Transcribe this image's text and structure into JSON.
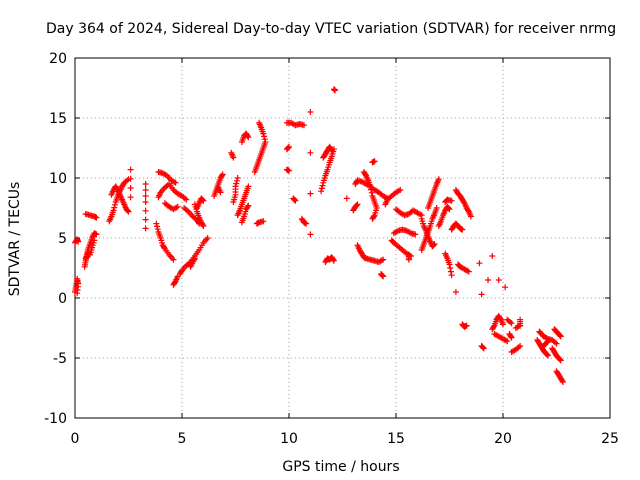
{
  "chart_data": {
    "type": "scatter",
    "title": "Day 364 of 2024, Sidereal Day-to-day VTEC variation (SDTVAR) for receiver nrmg",
    "xlabel": "GPS time / hours",
    "ylabel": "SDTVAR / TECUs",
    "xlim": [
      0,
      25
    ],
    "ylim": [
      -10,
      20
    ],
    "xticks": [
      0,
      5,
      10,
      15,
      20,
      25
    ],
    "yticks": [
      -10,
      -5,
      0,
      5,
      10,
      15,
      20
    ],
    "grid": true,
    "marker": "+",
    "color": "#ff0000",
    "segments": [
      [
        [
          0.0,
          0.5
        ],
        [
          0.05,
          1.0
        ],
        [
          0.1,
          1.6
        ],
        [
          0.15,
          1.2
        ],
        [
          0.1,
          0.4
        ]
      ],
      [
        [
          0.0,
          4.6
        ],
        [
          0.1,
          4.9
        ],
        [
          0.15,
          4.7
        ]
      ],
      [
        [
          0.45,
          2.6
        ],
        [
          0.5,
          3.1
        ],
        [
          0.55,
          3.5
        ],
        [
          0.6,
          4.0
        ],
        [
          0.7,
          4.5
        ],
        [
          0.8,
          5.0
        ],
        [
          0.9,
          5.4
        ],
        [
          1.0,
          5.3
        ]
      ],
      [
        [
          0.5,
          3.3
        ],
        [
          0.6,
          3.8
        ],
        [
          0.7,
          3.6
        ],
        [
          0.8,
          4.2
        ],
        [
          0.9,
          4.8
        ]
      ],
      [
        [
          0.5,
          7.0
        ],
        [
          0.7,
          6.9
        ],
        [
          0.9,
          6.8
        ],
        [
          1.0,
          6.7
        ]
      ],
      [
        [
          1.6,
          6.4
        ],
        [
          1.7,
          6.8
        ],
        [
          1.8,
          7.3
        ],
        [
          1.9,
          8.0
        ],
        [
          2.0,
          8.5
        ],
        [
          2.1,
          8.9
        ],
        [
          2.2,
          9.3
        ],
        [
          2.3,
          9.6
        ],
        [
          2.5,
          9.9
        ]
      ],
      [
        [
          1.7,
          8.6
        ],
        [
          1.8,
          9.0
        ],
        [
          1.9,
          9.3
        ],
        [
          2.0,
          9.0
        ],
        [
          2.1,
          8.6
        ],
        [
          2.2,
          8.2
        ],
        [
          2.3,
          7.8
        ],
        [
          2.4,
          7.4
        ],
        [
          2.5,
          7.2
        ]
      ],
      [
        [
          2.6,
          10.7
        ],
        [
          2.6,
          8.4
        ]
      ],
      [
        [
          3.3,
          9.5
        ],
        [
          3.3,
          8.0
        ],
        [
          3.3,
          5.8
        ]
      ],
      [
        [
          3.8,
          6.2
        ],
        [
          3.9,
          5.5
        ],
        [
          4.0,
          5.0
        ],
        [
          4.1,
          4.4
        ],
        [
          4.2,
          4.1
        ],
        [
          4.4,
          3.6
        ],
        [
          4.6,
          3.2
        ]
      ],
      [
        [
          3.9,
          8.4
        ],
        [
          4.0,
          8.8
        ],
        [
          4.2,
          9.2
        ],
        [
          4.4,
          9.5
        ],
        [
          4.6,
          9.0
        ],
        [
          4.8,
          8.7
        ],
        [
          5.0,
          8.5
        ],
        [
          5.2,
          8.2
        ]
      ],
      [
        [
          3.9,
          10.5
        ],
        [
          4.1,
          10.4
        ],
        [
          4.3,
          10.2
        ],
        [
          4.5,
          9.8
        ],
        [
          4.7,
          9.6
        ]
      ],
      [
        [
          4.2,
          7.9
        ],
        [
          4.4,
          7.6
        ],
        [
          4.6,
          7.4
        ],
        [
          4.8,
          7.6
        ]
      ],
      [
        [
          4.6,
          1.1
        ],
        [
          4.7,
          1.4
        ],
        [
          4.8,
          1.8
        ]
      ],
      [
        [
          4.9,
          2.0
        ],
        [
          5.0,
          2.3
        ],
        [
          5.2,
          2.7
        ],
        [
          5.4,
          3.0
        ],
        [
          5.6,
          3.5
        ],
        [
          5.8,
          4.0
        ],
        [
          6.0,
          4.6
        ],
        [
          6.2,
          5.0
        ]
      ],
      [
        [
          5.4,
          2.6
        ],
        [
          5.5,
          3.0
        ],
        [
          5.6,
          3.3
        ]
      ],
      [
        [
          5.1,
          7.5
        ],
        [
          5.3,
          7.2
        ],
        [
          5.5,
          6.8
        ],
        [
          5.7,
          6.5
        ],
        [
          5.8,
          6.2
        ]
      ],
      [
        [
          5.6,
          7.8
        ],
        [
          5.7,
          7.2
        ],
        [
          5.8,
          6.7
        ],
        [
          5.9,
          6.3
        ],
        [
          6.0,
          6.0
        ]
      ],
      [
        [
          5.7,
          7.5
        ],
        [
          5.8,
          7.9
        ],
        [
          5.9,
          8.3
        ],
        [
          6.0,
          8.1
        ]
      ],
      [
        [
          6.5,
          8.5
        ],
        [
          6.6,
          9.0
        ],
        [
          6.7,
          9.5
        ],
        [
          6.8,
          10.0
        ],
        [
          6.9,
          10.3
        ]
      ],
      [
        [
          6.7,
          9.2
        ],
        [
          6.8,
          8.8
        ]
      ],
      [
        [
          7.3,
          12.1
        ],
        [
          7.4,
          11.7
        ]
      ],
      [
        [
          7.4,
          8.0
        ],
        [
          7.5,
          8.6
        ],
        [
          7.5,
          9.3
        ],
        [
          7.6,
          10.0
        ]
      ],
      [
        [
          7.6,
          6.9
        ],
        [
          7.7,
          7.3
        ],
        [
          7.8,
          7.8
        ],
        [
          7.9,
          8.3
        ],
        [
          8.0,
          8.8
        ],
        [
          8.1,
          9.3
        ]
      ],
      [
        [
          7.8,
          13.0
        ],
        [
          7.9,
          13.5
        ],
        [
          8.0,
          13.7
        ],
        [
          8.1,
          13.4
        ]
      ],
      [
        [
          7.8,
          6.3
        ],
        [
          7.9,
          6.8
        ],
        [
          8.0,
          7.4
        ],
        [
          8.1,
          7.7
        ]
      ],
      [
        [
          8.4,
          10.5
        ],
        [
          8.5,
          11.0
        ],
        [
          8.6,
          11.5
        ],
        [
          8.7,
          12.0
        ],
        [
          8.8,
          12.5
        ],
        [
          8.9,
          13.0
        ],
        [
          8.8,
          13.7
        ],
        [
          8.7,
          14.2
        ],
        [
          8.6,
          14.6
        ]
      ],
      [
        [
          8.5,
          6.2
        ],
        [
          8.6,
          6.3
        ],
        [
          8.8,
          6.4
        ]
      ],
      [
        [
          9.9,
          10.7
        ],
        [
          10.0,
          10.6
        ]
      ],
      [
        [
          9.9,
          12.4
        ],
        [
          10.0,
          12.6
        ]
      ],
      [
        [
          9.9,
          14.6
        ],
        [
          10.1,
          14.6
        ],
        [
          10.3,
          14.4
        ],
        [
          10.5,
          14.5
        ],
        [
          10.7,
          14.4
        ]
      ],
      [
        [
          10.2,
          8.3
        ],
        [
          10.3,
          8.1
        ]
      ],
      [
        [
          10.6,
          6.6
        ],
        [
          10.7,
          6.3
        ],
        [
          10.8,
          6.2
        ]
      ],
      [
        [
          11.0,
          15.5
        ],
        [
          11.0,
          5.3
        ]
      ],
      [
        [
          11.5,
          8.9
        ],
        [
          11.6,
          9.6
        ],
        [
          11.7,
          10.2
        ],
        [
          11.8,
          10.7
        ],
        [
          11.9,
          11.3
        ],
        [
          12.0,
          11.8
        ],
        [
          12.1,
          12.4
        ]
      ],
      [
        [
          11.6,
          11.7
        ],
        [
          11.7,
          12.0
        ],
        [
          11.8,
          12.3
        ],
        [
          11.9,
          12.6
        ],
        [
          12.0,
          12.3
        ]
      ],
      [
        [
          11.7,
          3.0
        ],
        [
          11.8,
          3.3
        ],
        [
          11.9,
          3.2
        ],
        [
          12.0,
          3.4
        ],
        [
          12.1,
          3.1
        ]
      ],
      [
        [
          12.1,
          17.4
        ],
        [
          12.15,
          17.3
        ]
      ],
      [
        [
          12.7,
          8.3
        ]
      ],
      [
        [
          13.0,
          7.3
        ],
        [
          13.1,
          7.6
        ],
        [
          13.2,
          7.8
        ]
      ],
      [
        [
          13.1,
          9.5
        ],
        [
          13.2,
          9.8
        ],
        [
          13.4,
          9.7
        ],
        [
          13.6,
          9.5
        ],
        [
          13.8,
          9.3
        ],
        [
          14.0,
          9.0
        ],
        [
          14.2,
          8.8
        ],
        [
          14.4,
          8.5
        ],
        [
          14.6,
          8.3
        ]
      ],
      [
        [
          13.2,
          4.4
        ],
        [
          13.3,
          4.0
        ],
        [
          13.4,
          3.7
        ],
        [
          13.5,
          3.4
        ],
        [
          13.6,
          3.3
        ],
        [
          13.8,
          3.2
        ],
        [
          14.0,
          3.1
        ],
        [
          14.2,
          3.0
        ],
        [
          14.4,
          3.2
        ]
      ],
      [
        [
          13.5,
          10.5
        ],
        [
          13.6,
          10.2
        ],
        [
          13.7,
          9.8
        ],
        [
          13.8,
          9.3
        ],
        [
          13.9,
          8.5
        ],
        [
          14.0,
          8.0
        ],
        [
          14.1,
          7.5
        ],
        [
          14.0,
          6.9
        ],
        [
          13.9,
          6.6
        ]
      ],
      [
        [
          13.9,
          11.3
        ],
        [
          14.0,
          11.4
        ]
      ],
      [
        [
          14.3,
          2.0
        ],
        [
          14.4,
          1.8
        ]
      ],
      [
        [
          14.5,
          7.8
        ],
        [
          14.6,
          8.2
        ],
        [
          14.8,
          8.5
        ],
        [
          15.0,
          8.8
        ],
        [
          15.2,
          9.0
        ]
      ],
      [
        [
          14.8,
          4.8
        ],
        [
          14.9,
          4.6
        ],
        [
          15.1,
          4.3
        ],
        [
          15.3,
          4.0
        ],
        [
          15.5,
          3.7
        ],
        [
          15.7,
          3.5
        ]
      ],
      [
        [
          14.9,
          5.4
        ],
        [
          15.1,
          5.6
        ],
        [
          15.3,
          5.7
        ],
        [
          15.5,
          5.6
        ],
        [
          15.7,
          5.4
        ],
        [
          15.9,
          5.3
        ]
      ],
      [
        [
          15.0,
          7.4
        ],
        [
          15.2,
          7.1
        ],
        [
          15.4,
          6.9
        ],
        [
          15.6,
          7.0
        ],
        [
          15.8,
          7.3
        ],
        [
          16.0,
          7.1
        ],
        [
          16.2,
          6.9
        ]
      ],
      [
        [
          15.6,
          3.2
        ],
        [
          15.6,
          3.6
        ]
      ],
      [
        [
          16.2,
          4.0
        ],
        [
          16.3,
          4.5
        ],
        [
          16.4,
          5.0
        ],
        [
          16.5,
          5.5
        ],
        [
          16.6,
          6.0
        ],
        [
          16.7,
          6.6
        ],
        [
          16.8,
          7.0
        ],
        [
          16.9,
          7.5
        ]
      ],
      [
        [
          16.2,
          6.6
        ],
        [
          16.3,
          6.0
        ],
        [
          16.4,
          5.6
        ],
        [
          16.5,
          5.1
        ],
        [
          16.6,
          4.7
        ],
        [
          16.7,
          4.3
        ],
        [
          16.8,
          4.5
        ]
      ],
      [
        [
          16.5,
          7.5
        ],
        [
          16.6,
          8.0
        ],
        [
          16.7,
          8.5
        ],
        [
          16.8,
          9.0
        ],
        [
          16.9,
          9.5
        ],
        [
          17.0,
          9.9
        ]
      ],
      [
        [
          17.0,
          6.0
        ],
        [
          17.1,
          6.4
        ],
        [
          17.2,
          6.9
        ],
        [
          17.3,
          7.3
        ],
        [
          17.4,
          7.6
        ],
        [
          17.5,
          7.4
        ]
      ],
      [
        [
          17.3,
          8.0
        ],
        [
          17.4,
          8.2
        ],
        [
          17.6,
          8.1
        ]
      ],
      [
        [
          17.3,
          3.7
        ],
        [
          17.4,
          3.3
        ],
        [
          17.5,
          2.8
        ],
        [
          17.6,
          1.9
        ]
      ],
      [
        [
          17.6,
          5.7
        ],
        [
          17.7,
          6.0
        ],
        [
          17.8,
          6.2
        ],
        [
          17.9,
          6.0
        ],
        [
          18.0,
          5.8
        ],
        [
          18.1,
          5.7
        ]
      ],
      [
        [
          17.8,
          9.0
        ],
        [
          17.9,
          8.7
        ],
        [
          18.0,
          8.5
        ],
        [
          18.1,
          8.2
        ],
        [
          18.2,
          7.9
        ],
        [
          18.3,
          7.5
        ],
        [
          18.4,
          7.2
        ],
        [
          18.5,
          6.8
        ]
      ],
      [
        [
          17.9,
          2.8
        ],
        [
          18.0,
          2.6
        ],
        [
          18.2,
          2.4
        ],
        [
          18.4,
          2.2
        ]
      ],
      [
        [
          17.8,
          0.5
        ]
      ],
      [
        [
          18.1,
          -2.2
        ],
        [
          18.2,
          -2.4
        ],
        [
          18.3,
          -2.3
        ]
      ],
      [
        [
          18.9,
          2.9
        ]
      ],
      [
        [
          19.0,
          0.3
        ]
      ],
      [
        [
          19.0,
          -4.0
        ],
        [
          19.1,
          -4.2
        ]
      ],
      [
        [
          19.3,
          1.5
        ]
      ],
      [
        [
          19.5,
          3.5
        ]
      ],
      [
        [
          19.5,
          -2.6
        ],
        [
          19.6,
          -2.3
        ],
        [
          19.7,
          -1.8
        ],
        [
          19.8,
          -1.5
        ],
        [
          19.9,
          -1.8
        ],
        [
          20.0,
          -2.2
        ]
      ],
      [
        [
          19.6,
          -3.0
        ],
        [
          19.8,
          -3.2
        ],
        [
          20.0,
          -3.4
        ],
        [
          20.2,
          -3.6
        ]
      ],
      [
        [
          19.8,
          1.5
        ]
      ],
      [
        [
          20.1,
          0.9
        ]
      ],
      [
        [
          20.2,
          -1.8
        ],
        [
          20.4,
          -2.1
        ]
      ],
      [
        [
          20.3,
          -3.0
        ],
        [
          20.4,
          -3.3
        ]
      ],
      [
        [
          20.4,
          -4.5
        ],
        [
          20.6,
          -4.3
        ],
        [
          20.8,
          -4.0
        ]
      ],
      [
        [
          20.6,
          -2.5
        ],
        [
          20.8,
          -2.3
        ],
        [
          20.8,
          -1.8
        ]
      ],
      [
        [
          21.6,
          -3.5
        ],
        [
          21.7,
          -3.8
        ],
        [
          21.8,
          -4.1
        ],
        [
          21.9,
          -4.4
        ],
        [
          22.0,
          -4.6
        ],
        [
          22.1,
          -4.8
        ]
      ],
      [
        [
          21.7,
          -2.8
        ],
        [
          21.8,
          -3.0
        ],
        [
          21.9,
          -3.2
        ],
        [
          22.1,
          -3.4
        ],
        [
          22.3,
          -3.5
        ],
        [
          22.5,
          -3.8
        ]
      ],
      [
        [
          21.9,
          -4.0
        ],
        [
          22.0,
          -3.8
        ],
        [
          22.1,
          -3.6
        ]
      ],
      [
        [
          22.3,
          -4.2
        ],
        [
          22.4,
          -4.5
        ],
        [
          22.5,
          -4.8
        ],
        [
          22.6,
          -5.0
        ],
        [
          22.7,
          -5.2
        ]
      ],
      [
        [
          22.4,
          -2.6
        ],
        [
          22.5,
          -2.8
        ],
        [
          22.6,
          -3.0
        ],
        [
          22.7,
          -3.2
        ]
      ],
      [
        [
          22.5,
          -6.1
        ],
        [
          22.6,
          -6.4
        ],
        [
          22.7,
          -6.7
        ],
        [
          22.8,
          -7.0
        ]
      ]
    ]
  }
}
